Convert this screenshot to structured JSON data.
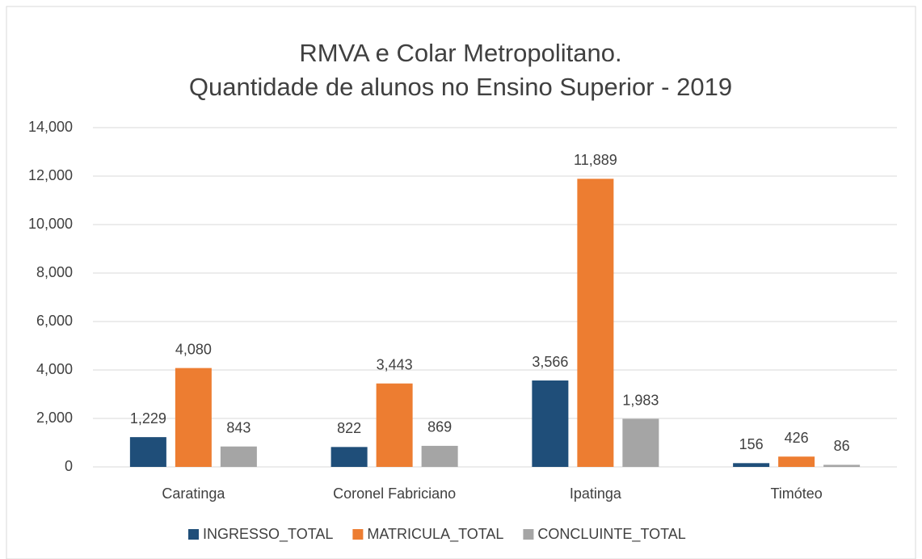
{
  "chart_data": {
    "type": "bar",
    "title": [
      "RMVA e Colar Metropolitano.",
      "Quantidade de alunos no Ensino Superior - 2019"
    ],
    "categories": [
      "Caratinga",
      "Coronel Fabriciano",
      "Ipatinga",
      "Timóteo"
    ],
    "series": [
      {
        "name": "INGRESSO_TOTAL",
        "color": "#1f4e79",
        "values": [
          1229,
          822,
          3566,
          156
        ],
        "value_labels": [
          "1,229",
          "822",
          "3,566",
          "156"
        ]
      },
      {
        "name": "MATRICULA_TOTAL",
        "color": "#ed7d31",
        "values": [
          4080,
          3443,
          11889,
          426
        ],
        "value_labels": [
          "4,080",
          "3,443",
          "11,889",
          "426"
        ]
      },
      {
        "name": "CONCLUINTE_TOTAL",
        "color": "#a5a5a5",
        "values": [
          843,
          869,
          1983,
          86
        ],
        "value_labels": [
          "843",
          "869",
          "1,983",
          "86"
        ]
      }
    ],
    "ylim": [
      0,
      14000
    ],
    "yticks": [
      0,
      {
        "value": 2000,
        "label": "2,000"
      },
      {
        "value": 4000,
        "label": "4,000"
      },
      {
        "value": 6000,
        "label": "6,000"
      },
      {
        "value": 8000,
        "label": "8,000"
      },
      {
        "value": 10000,
        "label": "10,000"
      },
      {
        "value": 12000,
        "label": "12,000"
      },
      {
        "value": 14000,
        "label": "14,000"
      }
    ],
    "grid": true,
    "legend": "bottom"
  }
}
